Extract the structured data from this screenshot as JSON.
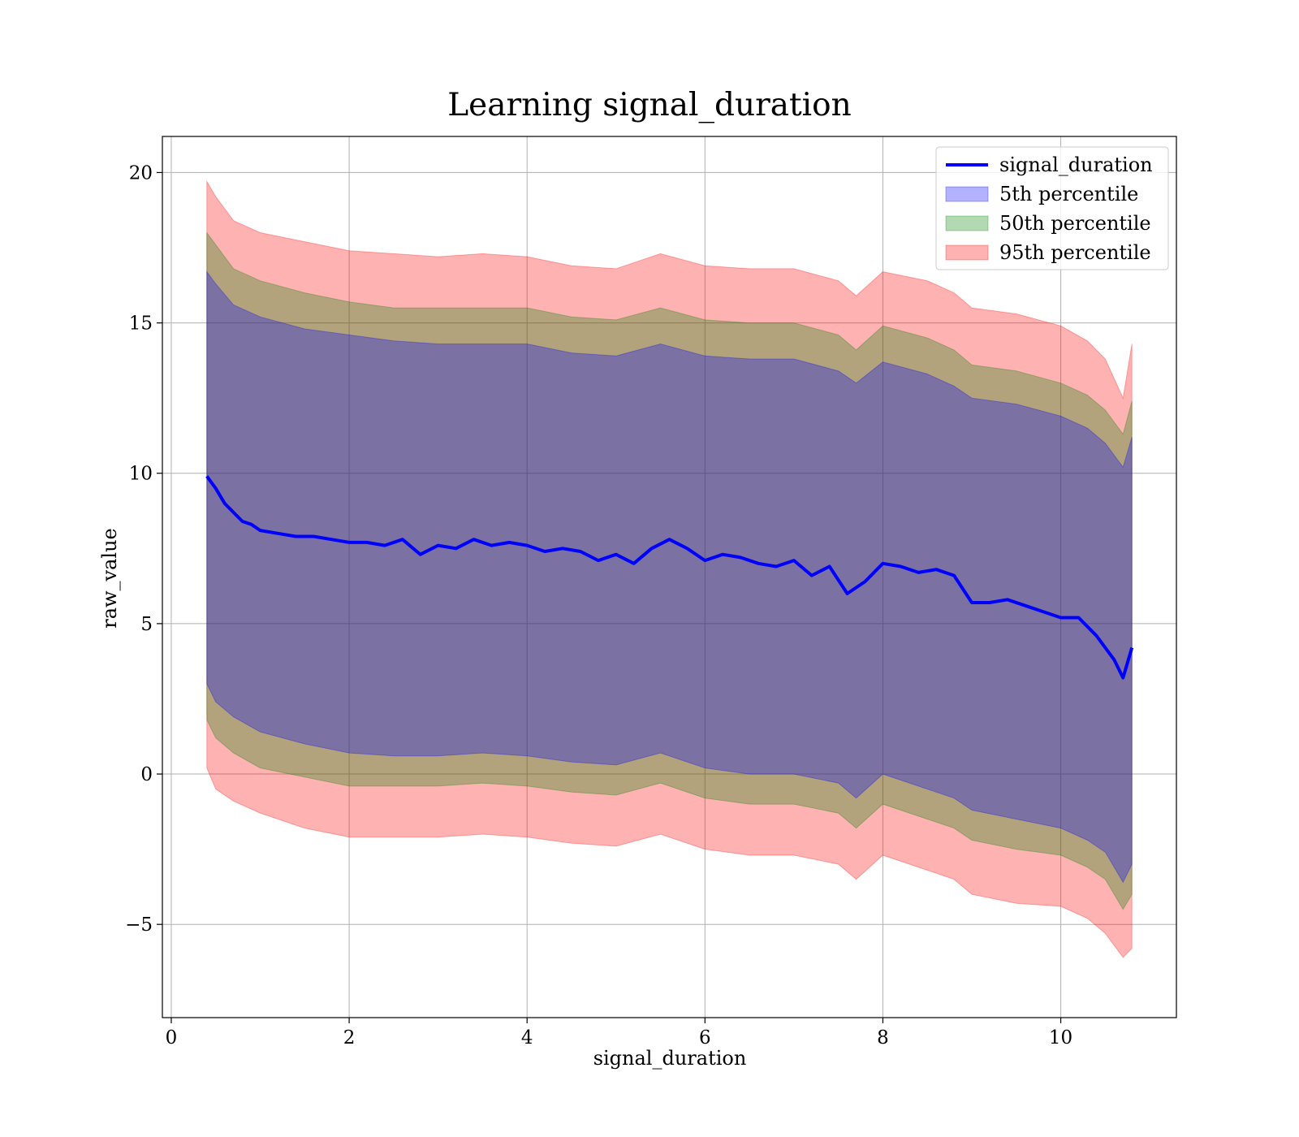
{
  "chart_data": {
    "type": "line",
    "title": "Learning signal_duration",
    "xlabel": "signal_duration",
    "ylabel": "raw_value",
    "xlim": [
      -0.1,
      11.3
    ],
    "ylim": [
      -8.1,
      21.2
    ],
    "xticks": [
      0,
      2,
      4,
      6,
      8,
      10
    ],
    "yticks": [
      -5,
      0,
      5,
      10,
      15,
      20
    ],
    "xtick_labels": [
      "0",
      "2",
      "4",
      "6",
      "8",
      "10"
    ],
    "ytick_labels": [
      "−5",
      "0",
      "5",
      "10",
      "15",
      "20"
    ],
    "grid": true,
    "legend_position": "top-right",
    "line_series": {
      "name": "signal_duration",
      "color": "#0000ff",
      "x": [
        0.4,
        0.45,
        0.5,
        0.6,
        0.7,
        0.8,
        0.9,
        1.0,
        1.2,
        1.4,
        1.6,
        1.8,
        2.0,
        2.2,
        2.4,
        2.6,
        2.8,
        3.0,
        3.2,
        3.4,
        3.6,
        3.8,
        4.0,
        4.2,
        4.4,
        4.6,
        4.8,
        5.0,
        5.2,
        5.4,
        5.6,
        5.8,
        6.0,
        6.2,
        6.4,
        6.6,
        6.8,
        7.0,
        7.2,
        7.4,
        7.6,
        7.8,
        8.0,
        8.2,
        8.4,
        8.6,
        8.8,
        9.0,
        9.2,
        9.4,
        9.6,
        9.8,
        10.0,
        10.2,
        10.4,
        10.6,
        10.7,
        10.8
      ],
      "y": [
        9.9,
        9.7,
        9.5,
        9.0,
        8.7,
        8.4,
        8.3,
        8.1,
        8.0,
        7.9,
        7.9,
        7.8,
        7.7,
        7.7,
        7.6,
        7.8,
        7.3,
        7.6,
        7.5,
        7.8,
        7.6,
        7.7,
        7.6,
        7.4,
        7.5,
        7.4,
        7.1,
        7.3,
        7.0,
        7.5,
        7.8,
        7.5,
        7.1,
        7.3,
        7.2,
        7.0,
        6.9,
        7.1,
        6.6,
        6.9,
        6.0,
        6.4,
        7.0,
        6.9,
        6.7,
        6.8,
        6.6,
        5.7,
        5.7,
        5.8,
        5.6,
        5.4,
        5.2,
        5.2,
        4.6,
        3.8,
        3.2,
        4.2
      ]
    },
    "band_x": [
      0.4,
      0.5,
      0.7,
      1.0,
      1.5,
      2.0,
      2.5,
      3.0,
      3.5,
      4.0,
      4.5,
      5.0,
      5.5,
      6.0,
      6.5,
      7.0,
      7.5,
      7.7,
      8.0,
      8.5,
      8.8,
      9.0,
      9.5,
      10.0,
      10.3,
      10.5,
      10.7,
      10.8
    ],
    "bands": [
      {
        "name": "95th percentile",
        "color": "#ff0000",
        "opacity": 0.3,
        "upper": [
          19.7,
          19.2,
          18.4,
          18.0,
          17.7,
          17.4,
          17.3,
          17.2,
          17.3,
          17.2,
          16.9,
          16.8,
          17.3,
          16.9,
          16.8,
          16.8,
          16.4,
          15.9,
          16.7,
          16.4,
          16.0,
          15.5,
          15.3,
          14.9,
          14.4,
          13.8,
          12.5,
          14.3
        ],
        "lower": [
          0.2,
          -0.5,
          -0.9,
          -1.3,
          -1.8,
          -2.1,
          -2.1,
          -2.1,
          -2.0,
          -2.1,
          -2.3,
          -2.4,
          -2.0,
          -2.5,
          -2.7,
          -2.7,
          -3.0,
          -3.5,
          -2.7,
          -3.2,
          -3.5,
          -4.0,
          -4.3,
          -4.4,
          -4.8,
          -5.3,
          -6.1,
          -5.8
        ]
      },
      {
        "name": "50th percentile",
        "color": "#008000",
        "opacity": 0.3,
        "upper": [
          18.0,
          17.6,
          16.8,
          16.4,
          16.0,
          15.7,
          15.5,
          15.5,
          15.5,
          15.5,
          15.2,
          15.1,
          15.5,
          15.1,
          15.0,
          15.0,
          14.6,
          14.1,
          14.9,
          14.5,
          14.1,
          13.6,
          13.4,
          13.0,
          12.6,
          12.1,
          11.3,
          12.4
        ],
        "lower": [
          1.8,
          1.2,
          0.7,
          0.2,
          -0.1,
          -0.4,
          -0.4,
          -0.4,
          -0.3,
          -0.4,
          -0.6,
          -0.7,
          -0.3,
          -0.8,
          -1.0,
          -1.0,
          -1.3,
          -1.8,
          -1.0,
          -1.5,
          -1.8,
          -2.2,
          -2.5,
          -2.7,
          -3.1,
          -3.5,
          -4.5,
          -4.0
        ]
      },
      {
        "name": "5th percentile",
        "color": "#0000ff",
        "opacity": 0.3,
        "upper": [
          16.7,
          16.3,
          15.6,
          15.2,
          14.8,
          14.6,
          14.4,
          14.3,
          14.3,
          14.3,
          14.0,
          13.9,
          14.3,
          13.9,
          13.8,
          13.8,
          13.4,
          13.0,
          13.7,
          13.3,
          12.9,
          12.5,
          12.3,
          11.9,
          11.5,
          11.0,
          10.2,
          11.2
        ],
        "lower": [
          3.0,
          2.4,
          1.9,
          1.4,
          1.0,
          0.7,
          0.6,
          0.6,
          0.7,
          0.6,
          0.4,
          0.3,
          0.7,
          0.2,
          0.0,
          0.0,
          -0.3,
          -0.8,
          0.0,
          -0.5,
          -0.8,
          -1.2,
          -1.5,
          -1.8,
          -2.2,
          -2.6,
          -3.6,
          -3.0
        ]
      }
    ],
    "legend": [
      {
        "label": "signal_duration",
        "kind": "line",
        "color": "#0000ff"
      },
      {
        "label": "5th percentile",
        "kind": "patch",
        "color": "#0000ff"
      },
      {
        "label": "50th percentile",
        "kind": "patch",
        "color": "#008000"
      },
      {
        "label": "95th percentile",
        "kind": "patch",
        "color": "#ff0000"
      }
    ]
  }
}
